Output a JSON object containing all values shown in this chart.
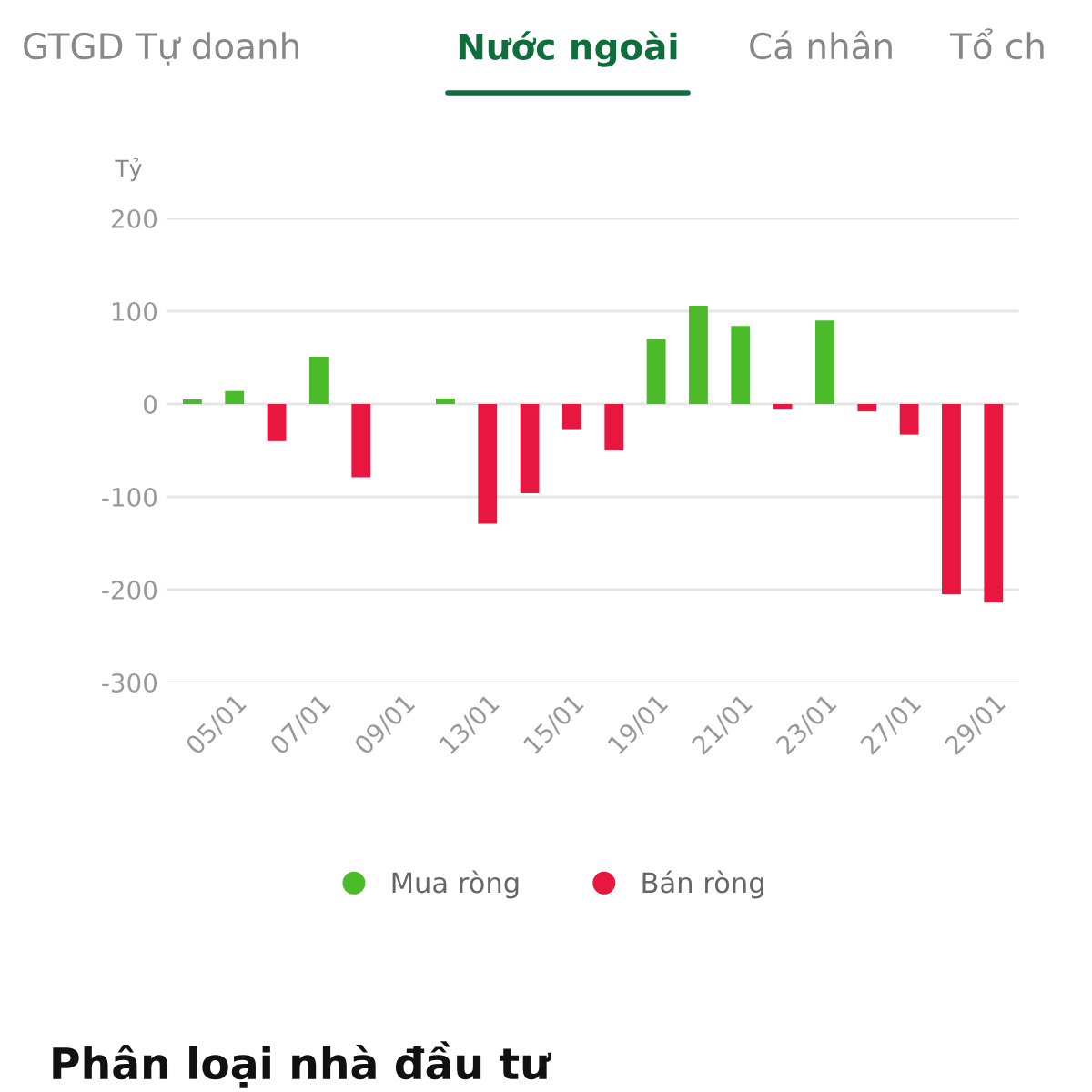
{
  "chart_data": {
    "type": "bar",
    "title": "Nước ngoài",
    "ylabel": "Tỷ",
    "categories": [
      null,
      "05/01",
      null,
      "07/01",
      null,
      "09/01",
      null,
      "13/01",
      null,
      "15/01",
      null,
      "19/01",
      null,
      "21/01",
      null,
      "23/01",
      null,
      "27/01",
      null,
      "29/01"
    ],
    "series": [
      {
        "name": "Mua ròng",
        "color": "#4cbb2a",
        "values": [
          5,
          14,
          null,
          51,
          null,
          null,
          6,
          null,
          null,
          null,
          null,
          70,
          106,
          84,
          null,
          90,
          null,
          null,
          null,
          null
        ]
      },
      {
        "name": "Bán ròng",
        "color": "#e8173f",
        "values": [
          null,
          null,
          -40,
          null,
          -79,
          null,
          null,
          -129,
          -96,
          -27,
          -50,
          null,
          null,
          null,
          -5,
          null,
          -8,
          -33,
          -205,
          -214
        ]
      }
    ],
    "ylim": [
      -300,
      200
    ],
    "yticks": [
      -300,
      -200,
      -100,
      0,
      100,
      200
    ],
    "grid": "y",
    "legend": "bottom",
    "annotations": [
      "GTGD Tự doanh",
      "Cá nhân",
      "Tổ ch",
      "Phân loại nhà đầu tư"
    ]
  }
}
